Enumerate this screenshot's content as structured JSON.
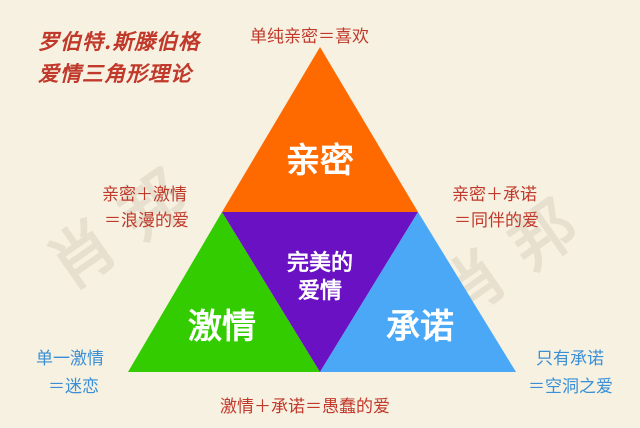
{
  "title": {
    "line1": "罗伯特.斯滕伯格",
    "line2": "爱情三角形理论"
  },
  "watermark": {
    "left": "肖 邦",
    "right": "肖 邦"
  },
  "triangles": {
    "top": {
      "label": "亲密",
      "color": "#ff6a00"
    },
    "left": {
      "label": "激情",
      "color": "#33cc00"
    },
    "center": {
      "label_line1": "完美的",
      "label_line2": "爱情",
      "color": "#6a11c4"
    },
    "right": {
      "label": "承诺",
      "color": "#4aa8f7"
    }
  },
  "annotations": {
    "top": "单纯亲密＝喜欢",
    "upper_left_line1": "亲密＋激情",
    "upper_left_line2": "＝浪漫的爱",
    "upper_right_line1": "亲密＋承诺",
    "upper_right_line2": "＝同伴的爱",
    "lower_left_line1": "单一激情",
    "lower_left_line2": "＝迷恋",
    "lower_right_line1": "只有承诺",
    "lower_right_line2": "＝空洞之爱",
    "bottom": "激情＋承诺＝愚蠢的爱"
  }
}
